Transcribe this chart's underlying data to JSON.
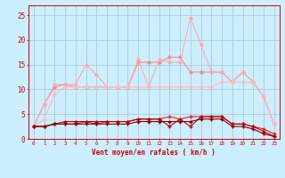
{
  "x": [
    0,
    1,
    2,
    3,
    4,
    5,
    6,
    7,
    8,
    9,
    10,
    11,
    12,
    13,
    14,
    15,
    16,
    17,
    18,
    19,
    20,
    21,
    22,
    23
  ],
  "series": [
    {
      "color": "#ff8888",
      "alpha": 1.0,
      "linewidth": 0.8,
      "marker": "D",
      "markersize": 1.8,
      "y": [
        2.5,
        7.0,
        10.5,
        11.0,
        10.5,
        10.5,
        10.5,
        10.5,
        10.5,
        10.5,
        15.5,
        15.5,
        15.5,
        16.5,
        16.5,
        13.5,
        13.5,
        13.5,
        13.5,
        11.5,
        13.5,
        11.5,
        8.5,
        3.0
      ]
    },
    {
      "color": "#ffaaaa",
      "alpha": 1.0,
      "linewidth": 0.8,
      "marker": "D",
      "markersize": 1.8,
      "y": [
        2.5,
        7.0,
        11.0,
        11.0,
        11.0,
        15.0,
        13.0,
        10.5,
        10.5,
        10.5,
        16.0,
        10.5,
        16.0,
        15.5,
        15.5,
        24.5,
        19.0,
        13.5,
        13.5,
        11.5,
        13.5,
        11.5,
        8.5,
        3.0
      ]
    },
    {
      "color": "#ffbbbb",
      "alpha": 1.0,
      "linewidth": 0.8,
      "marker": "D",
      "markersize": 1.8,
      "y": [
        2.5,
        4.0,
        9.0,
        10.5,
        10.5,
        10.5,
        10.5,
        10.5,
        10.5,
        10.5,
        10.5,
        10.5,
        10.5,
        10.5,
        10.5,
        10.5,
        10.5,
        10.5,
        11.5,
        11.5,
        11.5,
        11.5,
        8.5,
        3.0
      ]
    },
    {
      "color": "#dd2222",
      "alpha": 1.0,
      "linewidth": 0.8,
      "marker": "+",
      "markersize": 2.5,
      "y": [
        2.5,
        2.5,
        3.0,
        3.0,
        3.0,
        3.5,
        3.0,
        3.5,
        3.5,
        3.5,
        4.0,
        4.0,
        4.0,
        4.5,
        4.0,
        4.5,
        4.5,
        4.5,
        4.5,
        3.0,
        3.0,
        2.5,
        2.0,
        1.0
      ]
    },
    {
      "color": "#bb0000",
      "alpha": 1.0,
      "linewidth": 0.8,
      "marker": "+",
      "markersize": 2.5,
      "y": [
        2.5,
        2.5,
        3.0,
        3.5,
        3.5,
        3.5,
        3.5,
        3.5,
        3.5,
        3.5,
        4.0,
        4.0,
        4.0,
        2.5,
        4.0,
        2.5,
        4.5,
        4.5,
        4.5,
        3.0,
        3.0,
        2.5,
        1.5,
        0.5
      ]
    },
    {
      "color": "#880000",
      "alpha": 1.0,
      "linewidth": 0.8,
      "marker": "+",
      "markersize": 2.5,
      "y": [
        2.5,
        2.5,
        3.0,
        3.0,
        3.0,
        3.0,
        3.0,
        3.0,
        3.0,
        3.0,
        3.5,
        3.5,
        3.5,
        3.5,
        3.5,
        3.5,
        4.0,
        4.0,
        4.0,
        2.5,
        2.5,
        2.0,
        1.0,
        0.5
      ]
    }
  ],
  "xlim": [
    -0.5,
    23.5
  ],
  "ylim": [
    0,
    27
  ],
  "yticks": [
    0,
    5,
    10,
    15,
    20,
    25
  ],
  "xticks": [
    0,
    1,
    2,
    3,
    4,
    5,
    6,
    7,
    8,
    9,
    10,
    11,
    12,
    13,
    14,
    15,
    16,
    17,
    18,
    19,
    20,
    21,
    22,
    23
  ],
  "xlabel": "Vent moyen/en rafales ( km/h )",
  "bg_color": "#cceeff",
  "grid_color": "#aaccdd",
  "tick_color": "#cc0000",
  "label_color": "#cc0000",
  "spine_color": "#cc0000"
}
